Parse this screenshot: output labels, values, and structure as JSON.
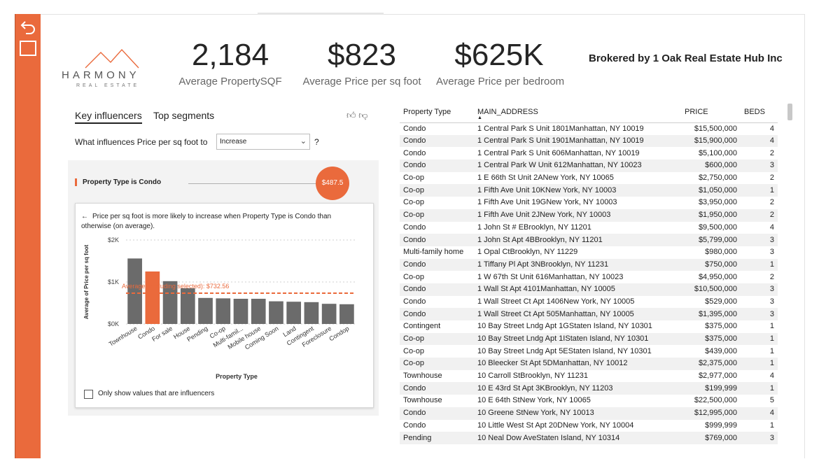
{
  "rail": {
    "undo_icon": "undo-icon",
    "square_icon": "square-icon"
  },
  "brand": {
    "logo_icon": "house-roof-logo",
    "name": "HARMONY",
    "sub": "REAL ESTATE",
    "accent": "#ea6a3c"
  },
  "kpis": [
    {
      "value": "2,184",
      "label": "Average PropertySQF"
    },
    {
      "value": "$823",
      "label": "Average Price per sq foot"
    },
    {
      "value": "$625K",
      "label": "Average Price per bedroom"
    }
  ],
  "broker": "Brokered by 1 Oak Real Estate Hub Inc",
  "influencers": {
    "tabs": [
      "Key influencers",
      "Top segments"
    ],
    "thumbs_up_icon": "thumbs-up-icon",
    "thumbs_down_icon": "thumbs-down-icon",
    "question_prefix": "What influences Price per sq foot to",
    "dropdown_value": "Increase",
    "question_mark": "?",
    "influencer_label": "Property Type is Condo",
    "influencer_value": "$487.5",
    "detail_text": "Price per sq foot is more likely to increase when Property Type is Condo than otherwise (on average).",
    "checkbox_label": "Only show values that are influencers"
  },
  "chart_data": {
    "type": "bar",
    "categories": [
      "Townhouse",
      "Condo",
      "For sale",
      "House",
      "Pending",
      "Co-op",
      "Multi-famil...",
      "Mobile house",
      "Coming Soon",
      "Land",
      "Contingent",
      "Foreclosure",
      "Condop"
    ],
    "values": [
      1560,
      1250,
      1020,
      850,
      620,
      610,
      600,
      600,
      540,
      530,
      520,
      480,
      470
    ],
    "highlight": "Condo",
    "highlight_color": "#ea6a3c",
    "bar_color": "#6b6b6b",
    "ylabel": "Average of Price per sq foot",
    "xlabel": "Property Type",
    "yticks": [
      "$0K",
      "$1K",
      "$2K"
    ],
    "ylim": [
      0,
      2000
    ],
    "average_line": {
      "value": 732.56,
      "label": "Average (excluding selected): $732.56"
    }
  },
  "table": {
    "columns": [
      "Property Type",
      "MAIN_ADDRESS",
      "PRICE",
      "BEDS"
    ],
    "rows": [
      [
        "Condo",
        "1 Central Park S Unit 1801Manhattan, NY 10019",
        "$15,500,000",
        "4"
      ],
      [
        "Condo",
        "1 Central Park S Unit 1901Manhattan, NY 10019",
        "$15,900,000",
        "4"
      ],
      [
        "Condo",
        "1 Central Park S Unit 606Manhattan, NY 10019",
        "$5,100,000",
        "2"
      ],
      [
        "Condo",
        "1 Central Park W Unit 612Manhattan, NY 10023",
        "$600,000",
        "3"
      ],
      [
        "Co-op",
        "1 E 66th St Unit 2ANew York, NY 10065",
        "$2,750,000",
        "2"
      ],
      [
        "Co-op",
        "1 Fifth Ave Unit 10KNew York, NY 10003",
        "$1,050,000",
        "1"
      ],
      [
        "Co-op",
        "1 Fifth Ave Unit 19GNew York, NY 10003",
        "$3,950,000",
        "2"
      ],
      [
        "Co-op",
        "1 Fifth Ave Unit 2JNew York, NY 10003",
        "$1,950,000",
        "2"
      ],
      [
        "Condo",
        "1 John St # EBrooklyn, NY 11201",
        "$9,500,000",
        "4"
      ],
      [
        "Condo",
        "1 John St Apt 4BBrooklyn, NY 11201",
        "$5,799,000",
        "3"
      ],
      [
        "Multi-family home",
        "1 Opal CtBrooklyn, NY 11229",
        "$980,000",
        "3"
      ],
      [
        "Condo",
        "1 Tiffany Pl Apt 3NBrooklyn, NY 11231",
        "$750,000",
        "1"
      ],
      [
        "Co-op",
        "1 W 67th St Unit 616Manhattan, NY 10023",
        "$4,950,000",
        "2"
      ],
      [
        "Condo",
        "1 Wall St Apt 4101Manhattan, NY 10005",
        "$10,500,000",
        "3"
      ],
      [
        "Condo",
        "1 Wall Street Ct Apt 1406New York, NY 10005",
        "$529,000",
        "3"
      ],
      [
        "Condo",
        "1 Wall Street Ct Apt 505Manhattan, NY 10005",
        "$1,395,000",
        "3"
      ],
      [
        "Contingent",
        "10 Bay Street Lndg Apt 1GStaten Island, NY 10301",
        "$375,000",
        "1"
      ],
      [
        "Co-op",
        "10 Bay Street Lndg Apt 1IStaten Island, NY 10301",
        "$375,000",
        "1"
      ],
      [
        "Co-op",
        "10 Bay Street Lndg Apt 5EStaten Island, NY 10301",
        "$439,000",
        "1"
      ],
      [
        "Co-op",
        "10 Bleecker St Apt 5DManhattan, NY 10012",
        "$2,375,000",
        "1"
      ],
      [
        "Townhouse",
        "10 Carroll StBrooklyn, NY 11231",
        "$2,977,000",
        "4"
      ],
      [
        "Condo",
        "10 E 43rd St Apt 3KBrooklyn, NY 11203",
        "$199,999",
        "1"
      ],
      [
        "Townhouse",
        "10 E 64th StNew York, NY 10065",
        "$22,500,000",
        "5"
      ],
      [
        "Condo",
        "10 Greene StNew York, NY 10013",
        "$12,995,000",
        "4"
      ],
      [
        "Condo",
        "10 Little West St Apt 20DNew York, NY 10004",
        "$999,999",
        "1"
      ],
      [
        "Pending",
        "10 Neal Dow AveStaten Island, NY 10314",
        "$769,000",
        "3"
      ]
    ]
  }
}
